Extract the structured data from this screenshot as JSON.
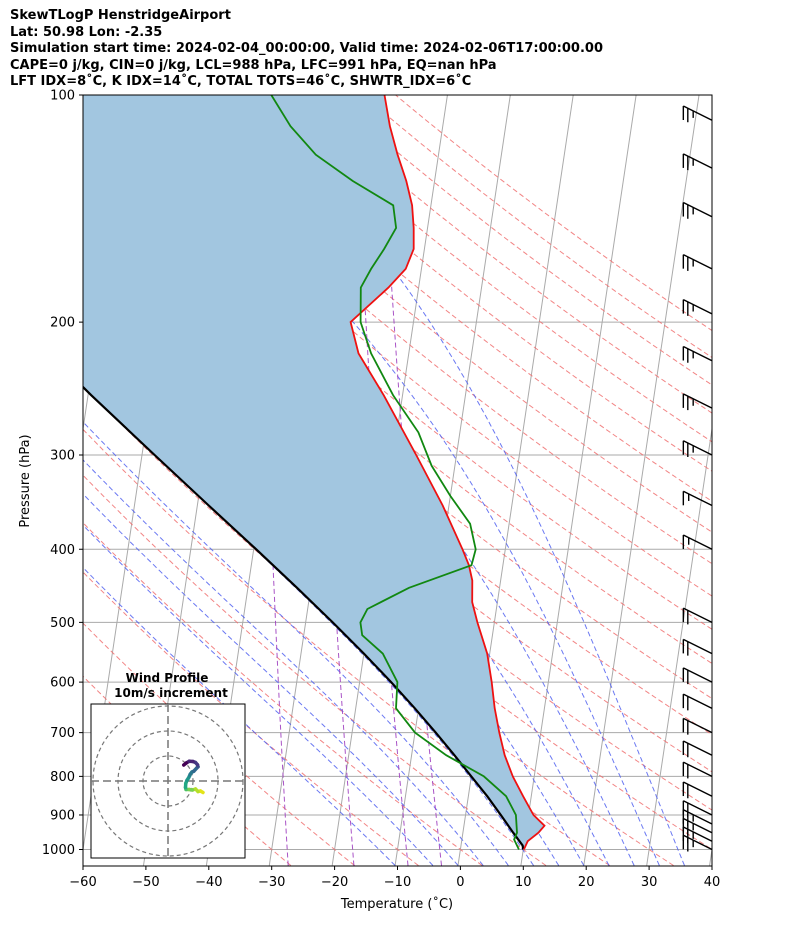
{
  "header": {
    "line1": "SkewTLogP HenstridgeAirport",
    "line2": "Lat: 50.98   Lon: -2.35",
    "line3": "Simulation start time: 2024-02-04_00:00:00, Valid time: 2024-02-06T17:00:00.00",
    "line4": "CAPE=0 j/kg, CIN=0 j/kg, LCL=988 hPa, LFC=991 hPa, EQ=nan hPa",
    "line5": "LFT IDX=8˚C, K IDX=14˚C, TOTAL TOTS=46˚C, SHWTR_IDX=6˚C"
  },
  "chart_data": {
    "type": "skew-t log-p",
    "xlabel": "Temperature (˚C)",
    "ylabel": "Pressure (hPa)",
    "xlim": [
      -60,
      40
    ],
    "ylim": [
      1050,
      100
    ],
    "x_ticks": [
      -60,
      -50,
      -40,
      -30,
      -20,
      -10,
      0,
      10,
      20,
      30,
      40
    ],
    "x_tick_labels": [
      "−60",
      "−50",
      "−40",
      "−30",
      "−20",
      "−10",
      "0",
      "10",
      "20",
      "30",
      "40"
    ],
    "y_ticks": [
      1000,
      900,
      800,
      700,
      600,
      500,
      400,
      300,
      200,
      100
    ],
    "y_tick_labels": [
      "1000",
      "900",
      "800",
      "700",
      "600",
      "500",
      "400",
      "300",
      "200",
      "100"
    ],
    "grid": true,
    "colors": {
      "temperature": "#ee1111",
      "dewpoint": "#118811",
      "parcel": "#000000",
      "cape_fill": "#a2c6e0",
      "dry_adiabats": "#f07070",
      "moist_adiabats": "#5060f0",
      "mixing_ratio": "#a040c0",
      "isotherms": "#aaaaaa"
    },
    "series": [
      {
        "name": "temperature",
        "points": [
          [
            1000,
            10.1
          ],
          [
            975,
            10.5
          ],
          [
            950,
            12.0
          ],
          [
            930,
            12.8
          ],
          [
            900,
            10.8
          ],
          [
            850,
            8.7
          ],
          [
            800,
            6.6
          ],
          [
            750,
            4.8
          ],
          [
            700,
            3.4
          ],
          [
            650,
            2.1
          ],
          [
            600,
            1.0
          ],
          [
            550,
            -0.4
          ],
          [
            500,
            -2.7
          ],
          [
            470,
            -4.0
          ],
          [
            440,
            -4.5
          ],
          [
            420,
            -5.4
          ],
          [
            400,
            -6.8
          ],
          [
            350,
            -11.0
          ],
          [
            300,
            -16.4
          ],
          [
            250,
            -23.0
          ],
          [
            220,
            -28.0
          ],
          [
            200,
            -30.0
          ],
          [
            180,
            -24.8
          ],
          [
            170,
            -22.5
          ],
          [
            160,
            -21.7
          ],
          [
            150,
            -22.2
          ],
          [
            140,
            -23.0
          ],
          [
            130,
            -24.5
          ],
          [
            120,
            -26.5
          ],
          [
            110,
            -28.4
          ],
          [
            100,
            -30.0
          ]
        ]
      },
      {
        "name": "dewpoint",
        "points": [
          [
            1000,
            9.3
          ],
          [
            970,
            8.3
          ],
          [
            950,
            8.6
          ],
          [
            900,
            8.0
          ],
          [
            850,
            6.0
          ],
          [
            800,
            2.0
          ],
          [
            750,
            -4.5
          ],
          [
            700,
            -10.0
          ],
          [
            650,
            -13.6
          ],
          [
            600,
            -14.0
          ],
          [
            550,
            -17.0
          ],
          [
            520,
            -20.7
          ],
          [
            500,
            -21.3
          ],
          [
            480,
            -20.5
          ],
          [
            450,
            -14.4
          ],
          [
            420,
            -5.0
          ],
          [
            400,
            -4.7
          ],
          [
            370,
            -6.2
          ],
          [
            340,
            -10.0
          ],
          [
            310,
            -13.7
          ],
          [
            280,
            -16.6
          ],
          [
            250,
            -21.5
          ],
          [
            220,
            -26.0
          ],
          [
            200,
            -28.4
          ],
          [
            180,
            -29.2
          ],
          [
            170,
            -28.0
          ],
          [
            160,
            -26.4
          ],
          [
            150,
            -25.0
          ],
          [
            140,
            -26.0
          ],
          [
            130,
            -33.0
          ],
          [
            120,
            -39.5
          ],
          [
            110,
            -44.2
          ],
          [
            100,
            -48.0
          ]
        ]
      },
      {
        "name": "parcel",
        "points": [
          [
            1000,
            10.0
          ],
          [
            988,
            9.8
          ],
          [
            950,
            8.0
          ],
          [
            900,
            5.6
          ],
          [
            850,
            3.0
          ],
          [
            800,
            0.0
          ],
          [
            750,
            -3.2
          ],
          [
            700,
            -6.7
          ],
          [
            650,
            -10.6
          ],
          [
            600,
            -15.0
          ],
          [
            550,
            -20.0
          ],
          [
            500,
            -25.7
          ],
          [
            450,
            -32.2
          ],
          [
            400,
            -39.6
          ],
          [
            350,
            -48.2
          ],
          [
            300,
            -58.0
          ],
          [
            250,
            -69.5
          ],
          [
            200,
            -83.0
          ],
          [
            150,
            -99.5
          ],
          [
            100,
            -121.0
          ]
        ]
      }
    ],
    "wind_barbs": [
      {
        "pressure": 1000,
        "speed_kt": 25
      },
      {
        "pressure": 975,
        "speed_kt": 25
      },
      {
        "pressure": 950,
        "speed_kt": 25
      },
      {
        "pressure": 925,
        "speed_kt": 25
      },
      {
        "pressure": 900,
        "speed_kt": 20
      },
      {
        "pressure": 850,
        "speed_kt": 20
      },
      {
        "pressure": 800,
        "speed_kt": 20
      },
      {
        "pressure": 750,
        "speed_kt": 20
      },
      {
        "pressure": 700,
        "speed_kt": 20
      },
      {
        "pressure": 650,
        "speed_kt": 20
      },
      {
        "pressure": 600,
        "speed_kt": 20
      },
      {
        "pressure": 550,
        "speed_kt": 20
      },
      {
        "pressure": 500,
        "speed_kt": 20
      },
      {
        "pressure": 400,
        "speed_kt": 15
      },
      {
        "pressure": 350,
        "speed_kt": 15
      },
      {
        "pressure": 300,
        "speed_kt": 25
      },
      {
        "pressure": 260,
        "speed_kt": 25
      },
      {
        "pressure": 225,
        "speed_kt": 25
      },
      {
        "pressure": 195,
        "speed_kt": 25
      },
      {
        "pressure": 170,
        "speed_kt": 25
      },
      {
        "pressure": 145,
        "speed_kt": 25
      },
      {
        "pressure": 125,
        "speed_kt": 25
      },
      {
        "pressure": 108,
        "speed_kt": 25
      }
    ],
    "hodograph": {
      "title": "Wind Profile",
      "subtitle": "10m/s increment",
      "ring_increment_ms": 10,
      "rings": 3,
      "points_uv": [
        [
          14.0,
          -4.6
        ],
        [
          13.0,
          -4.0
        ],
        [
          12.0,
          -4.2
        ],
        [
          11.0,
          -3.2
        ],
        [
          9.8,
          -3.6
        ],
        [
          8.5,
          -3.4
        ],
        [
          7.2,
          -3.4
        ],
        [
          7.0,
          -2.6
        ],
        [
          7.1,
          -1.0
        ],
        [
          7.6,
          0.3
        ],
        [
          8.2,
          1.2
        ],
        [
          8.6,
          2.0
        ],
        [
          8.9,
          2.7
        ],
        [
          9.6,
          3.6
        ],
        [
          10.3,
          3.9
        ],
        [
          11.6,
          5.3
        ],
        [
          12.0,
          5.7
        ],
        [
          11.8,
          6.5
        ],
        [
          11.0,
          7.4
        ],
        [
          10.0,
          7.8
        ],
        [
          8.5,
          7.9
        ],
        [
          7.3,
          7.2
        ],
        [
          6.3,
          6.4
        ]
      ]
    }
  }
}
